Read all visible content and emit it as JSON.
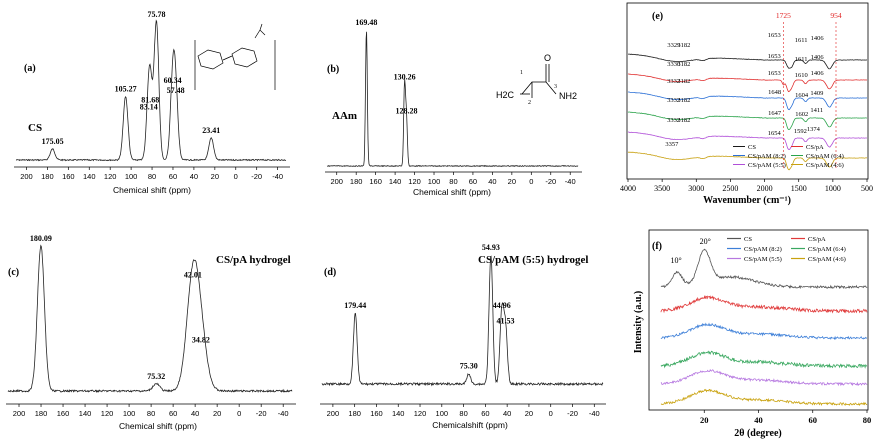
{
  "chart_data": [
    {
      "id": "a",
      "type": "line",
      "panel_label": "(a)",
      "label": "CS",
      "xlabel": "Chemical shift (ppm)",
      "xlim": [
        210,
        -48
      ],
      "ticks": [
        "200",
        "180",
        "160",
        "140",
        "120",
        "100",
        "80",
        "60",
        "40",
        "20",
        "0",
        "-20",
        "-40"
      ],
      "peaks": [
        {
          "x": 175.05,
          "label": "175.05",
          "h": 0.08
        },
        {
          "x": 105.27,
          "label": "105.27",
          "h": 0.46
        },
        {
          "x": 83.14,
          "label": "83.14",
          "h": 0.33
        },
        {
          "x": 81.68,
          "label": "81.68",
          "h": 0.38
        },
        {
          "x": 75.78,
          "label": "75.78",
          "h": 1.0
        },
        {
          "x": 60.34,
          "label": "60.34",
          "h": 0.52
        },
        {
          "x": 57.48,
          "label": "57.48",
          "h": 0.45
        },
        {
          "x": 23.41,
          "label": "23.41",
          "h": 0.16
        }
      ]
    },
    {
      "id": "b",
      "type": "line",
      "panel_label": "(b)",
      "label": "AAm",
      "xlabel": "Chemical shift (ppm)",
      "xlim": [
        210,
        -48
      ],
      "ticks": [
        "200",
        "180",
        "160",
        "140",
        "120",
        "100",
        "80",
        "60",
        "40",
        "20",
        "0",
        "-20",
        "-40"
      ],
      "structure_labels": [
        "O",
        "NH2",
        "H2C",
        "1",
        "2",
        "3"
      ],
      "peaks": [
        {
          "x": 169.48,
          "label": "169.48",
          "h": 1.0
        },
        {
          "x": 130.26,
          "label": "130.26",
          "h": 0.6
        },
        {
          "x": 128.28,
          "label": "128.28",
          "h": 0.35
        }
      ]
    },
    {
      "id": "c",
      "type": "line",
      "panel_label": "(c)",
      "label": "CS/pA hydrogel",
      "xlabel": "Chemical shift (ppm)",
      "xlim": [
        210,
        -48
      ],
      "ticks": [
        "200",
        "180",
        "160",
        "140",
        "120",
        "100",
        "80",
        "60",
        "40",
        "20",
        "0",
        "-20",
        "-40"
      ],
      "peaks": [
        {
          "x": 180.09,
          "label": "180.09",
          "h": 1.0
        },
        {
          "x": 75.32,
          "label": "75.32",
          "h": 0.05
        },
        {
          "x": 42.01,
          "label": "42.01",
          "h": 0.75
        },
        {
          "x": 34.82,
          "label": "34.82",
          "h": 0.3
        }
      ]
    },
    {
      "id": "d",
      "type": "line",
      "panel_label": "(d)",
      "label": "CS/pAM (5:5) hydrogel",
      "xlabel": "Chemicalshift (ppm)",
      "xlim": [
        210,
        -48
      ],
      "ticks": [
        "200",
        "180",
        "160",
        "140",
        "120",
        "100",
        "80",
        "60",
        "40",
        "20",
        "0",
        "-20",
        "-40"
      ],
      "peaks": [
        {
          "x": 179.44,
          "label": "179.44",
          "h": 0.55
        },
        {
          "x": 75.3,
          "label": "75.30",
          "h": 0.08
        },
        {
          "x": 54.93,
          "label": "54.93",
          "h": 1.0
        },
        {
          "x": 44.96,
          "label": "44.96",
          "h": 0.55
        },
        {
          "x": 41.53,
          "label": "41.53",
          "h": 0.43
        }
      ]
    },
    {
      "id": "e",
      "type": "line",
      "panel_label": "(e)",
      "xlabel": "Wavenumber (cm⁻¹)",
      "xlim": [
        4000,
        500
      ],
      "ticks": [
        "4000",
        "3500",
        "3000",
        "2500",
        "2000",
        "1500",
        "1000",
        "500"
      ],
      "series": [
        {
          "name": "CS",
          "color": "#1a1a1a"
        },
        {
          "name": "CS/pA",
          "color": "#e03030"
        },
        {
          "name": "CS/pAM (8:2)",
          "color": "#2a6fd6"
        },
        {
          "name": "CS/pAM (6:4)",
          "color": "#2aa34a"
        },
        {
          "name": "CS/pAM (5:5)",
          "color": "#b04fd8"
        },
        {
          "name": "CS/pAM (4:6)",
          "color": "#c8a010"
        }
      ],
      "highlight_labels": [
        {
          "x": 1725,
          "label": "1725",
          "color": "#e02020"
        },
        {
          "x": 954,
          "label": "954",
          "color": "#e02020"
        }
      ],
      "annotations": [
        "1653",
        "3329",
        "3182",
        "1611",
        "1406",
        "1653",
        "3330",
        "3182",
        "1611",
        "1406",
        "1653",
        "3332",
        "3182",
        "1610",
        "1406",
        "1648",
        "3332",
        "3182",
        "1604",
        "1409",
        "1647",
        "1602",
        "1411",
        "3332",
        "3182",
        "1654",
        "1592",
        "1374",
        "3357"
      ]
    },
    {
      "id": "f",
      "type": "line",
      "panel_label": "(f)",
      "xlabel": "2θ (degree)",
      "ylabel": "Intensity (a.u.)",
      "xlim": [
        0,
        80
      ],
      "ticks": [
        "20",
        "40",
        "60",
        "80"
      ],
      "peak_labels": [
        {
          "x": 10,
          "label": "10°"
        },
        {
          "x": 20,
          "label": "20°"
        }
      ],
      "series": [
        {
          "name": "CS",
          "color": "#555555"
        },
        {
          "name": "CS/pA",
          "color": "#e03a3a"
        },
        {
          "name": "CS/pAM (8:2)",
          "color": "#3d7fd8"
        },
        {
          "name": "CS/pAM (6:4)",
          "color": "#3aa860"
        },
        {
          "name": "CS/pAM (5:5)",
          "color": "#b678e0"
        },
        {
          "name": "CS/pAM (4:6)",
          "color": "#c9a20e"
        }
      ]
    }
  ]
}
